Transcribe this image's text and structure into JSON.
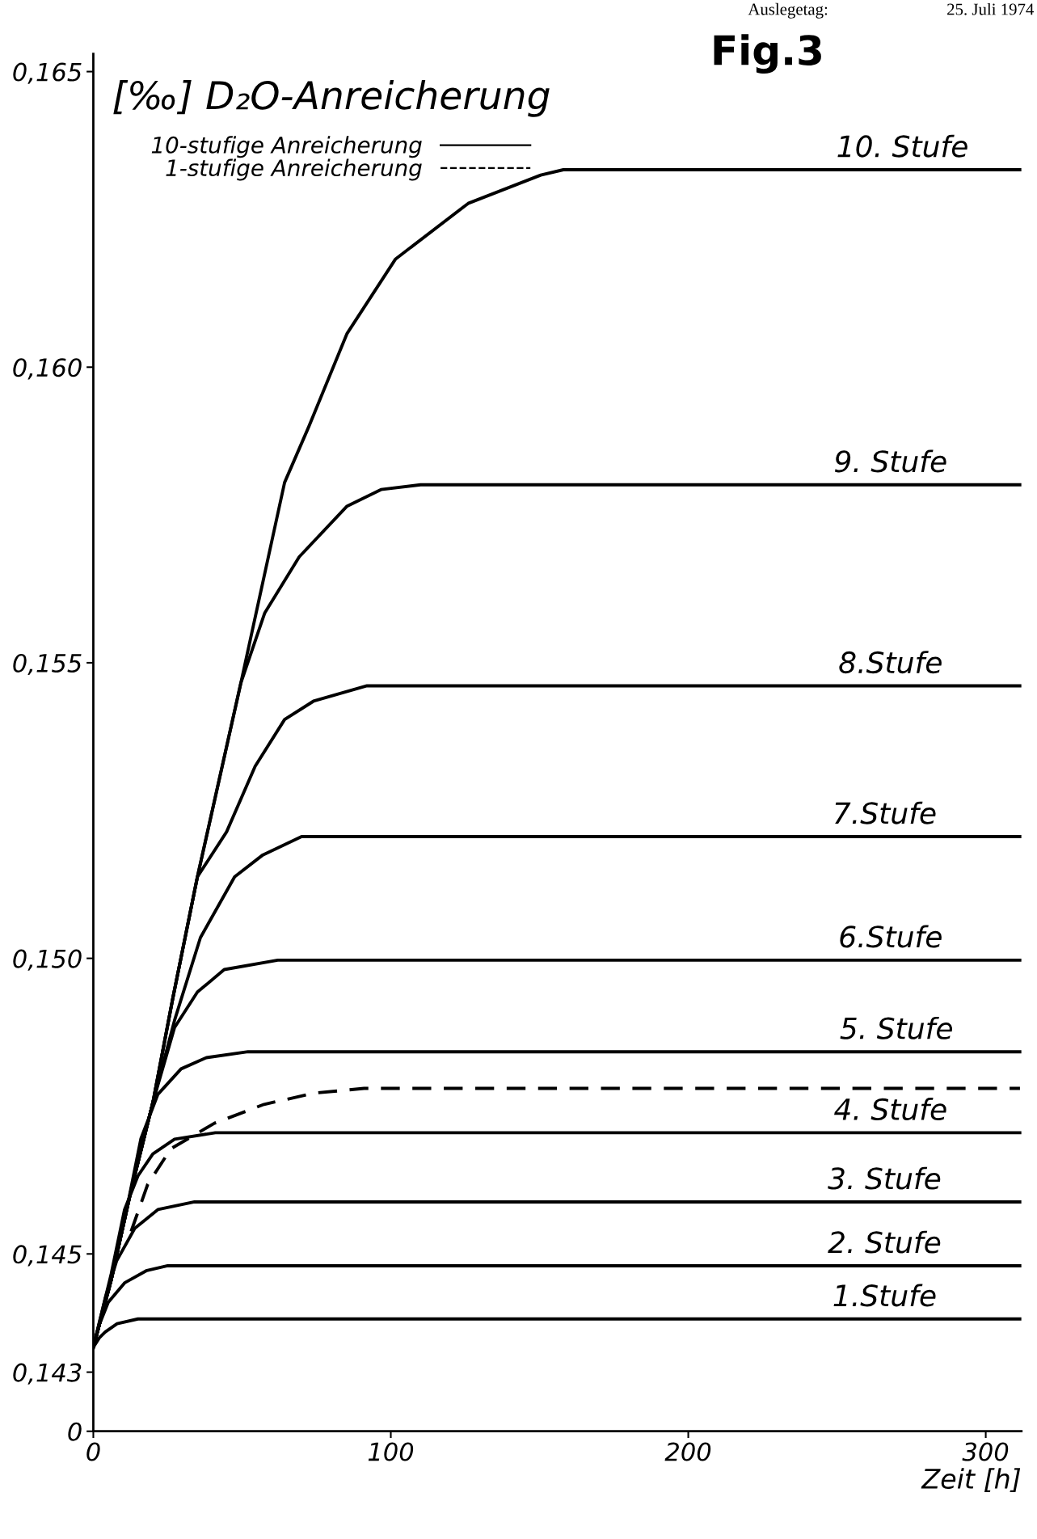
{
  "chart_data": {
    "type": "line",
    "title": "[‰] D₂O-Anreicherung",
    "xlabel": "Zeit [h]",
    "xlim": [
      0,
      312
    ],
    "xticks": [
      0,
      100,
      200,
      300
    ],
    "ylim": [
      0.142,
      0.1653
    ],
    "yticks": [
      {
        "value": 0.142,
        "label": "0"
      },
      {
        "value": 0.143,
        "label": "0,143"
      },
      {
        "value": 0.145,
        "label": "0,145"
      },
      {
        "value": 0.15,
        "label": "0,150"
      },
      {
        "value": 0.155,
        "label": "0,155"
      },
      {
        "value": 0.16,
        "label": "0,160"
      },
      {
        "value": 0.165,
        "label": "0,165"
      }
    ],
    "grid": false,
    "legend": "top left",
    "marker": "none",
    "line_style": "solid",
    "series": [
      {
        "color": "#000000",
        "x": [
          0,
          2,
          4,
          8,
          15,
          311.5
        ],
        "values": [
          0.14342,
          0.14358,
          0.14368,
          0.14382,
          0.1439,
          0.1439
        ]
      },
      {
        "color": "#000000",
        "x": [
          0,
          2,
          5,
          10.5,
          18,
          25,
          311.5
        ],
        "values": [
          0.14342,
          0.1438,
          0.14418,
          0.14451,
          0.14472,
          0.1448,
          0.1448
        ]
      },
      {
        "color": "#000000",
        "x": [
          0,
          4,
          7.8,
          13.9,
          21.7,
          34,
          311.5
        ],
        "values": [
          0.14342,
          0.14425,
          0.14488,
          0.14543,
          0.14575,
          0.14588,
          0.14588
        ]
      },
      {
        "color": "#000000",
        "x": [
          0,
          6,
          10.5,
          15,
          20,
          27.3,
          41,
          311.5
        ],
        "values": [
          0.14342,
          0.14466,
          0.14575,
          0.14632,
          0.14669,
          0.14694,
          0.14705,
          0.14705
        ]
      },
      {
        "color": "#000000",
        "x": [
          0,
          6,
          12,
          16,
          21.7,
          29.5,
          38,
          52,
          311.5
        ],
        "values": [
          0.14342,
          0.14456,
          0.14595,
          0.14695,
          0.1477,
          0.14813,
          0.14832,
          0.14842,
          0.14842
        ]
      },
      {
        "color": "#000000",
        "x": [
          0,
          6,
          12.7,
          20.1,
          27.3,
          35,
          44,
          62,
          311.5
        ],
        "values": [
          0.14342,
          0.14456,
          0.14608,
          0.14758,
          0.14883,
          0.14943,
          0.14981,
          0.14997,
          0.14997
        ]
      },
      {
        "color": "#000000",
        "x": [
          0,
          6,
          12.7,
          20.1,
          27.3,
          36,
          47.5,
          57,
          70,
          311.5
        ],
        "values": [
          0.14342,
          0.14456,
          0.14608,
          0.14758,
          0.14895,
          0.15035,
          0.15138,
          0.15175,
          0.15206,
          0.15206
        ]
      },
      {
        "color": "#000000",
        "x": [
          0,
          6,
          12.7,
          20.1,
          26.7,
          35,
          44.8,
          54.4,
          64.3,
          74,
          92,
          311.5
        ],
        "values": [
          0.14342,
          0.14456,
          0.14608,
          0.14758,
          0.14932,
          0.15138,
          0.15214,
          0.15325,
          0.15404,
          0.15435,
          0.15461,
          0.15461
        ]
      },
      {
        "color": "#000000",
        "x": [
          0,
          6,
          12.7,
          20.1,
          26.7,
          35,
          49.6,
          57.6,
          69.2,
          85.3,
          96.7,
          110,
          311.5
        ],
        "values": [
          0.14342,
          0.14456,
          0.14608,
          0.14758,
          0.14932,
          0.15138,
          0.15466,
          0.15584,
          0.15679,
          0.15765,
          0.15793,
          0.15801,
          0.15801
        ]
      },
      {
        "name": "10-stufige Anreicherung",
        "color": "#000000",
        "x": [
          0,
          6,
          12.7,
          20.1,
          26.7,
          35,
          49.6,
          64.3,
          72.4,
          85.3,
          101.6,
          126,
          150.4,
          158,
          311.5
        ],
        "values": [
          0.14342,
          0.14456,
          0.14608,
          0.14758,
          0.14932,
          0.15138,
          0.15466,
          0.15805,
          0.15899,
          0.16057,
          0.16183,
          0.16277,
          0.16325,
          0.16334,
          0.16334
        ]
      },
      {
        "name": "1-stufige Anreicherung",
        "color": "#000000",
        "line_style": "dashed",
        "x": [
          12.7,
          18.3,
          26.1,
          40.7,
          57.4,
          74.3,
          91,
          311.5
        ],
        "values": [
          0.14538,
          0.14618,
          0.14678,
          0.14721,
          0.14753,
          0.14772,
          0.1478,
          0.1478
        ]
      }
    ],
    "annotations": [
      {
        "text": "10. Stufe",
        "x": 272,
        "y": 0.16334
      },
      {
        "text": "9. Stufe",
        "x": 268,
        "y": 0.15801
      },
      {
        "text": "8.Stufe",
        "x": 268,
        "y": 0.15461
      },
      {
        "text": "7.Stufe",
        "x": 266,
        "y": 0.15206
      },
      {
        "text": "6.Stufe",
        "x": 268,
        "y": 0.14997
      },
      {
        "text": "5. Stufe",
        "x": 270,
        "y": 0.14842
      },
      {
        "text": "4. Stufe",
        "x": 268,
        "y": 0.14705
      },
      {
        "text": "3. Stufe",
        "x": 266,
        "y": 0.14588
      },
      {
        "text": "2. Stufe",
        "x": 266,
        "y": 0.1448
      },
      {
        "text": "1.Stufe",
        "x": 266,
        "y": 0.1439
      },
      "Fig.3",
      "Auslegetag:",
      "25. Juli 1974"
    ]
  }
}
